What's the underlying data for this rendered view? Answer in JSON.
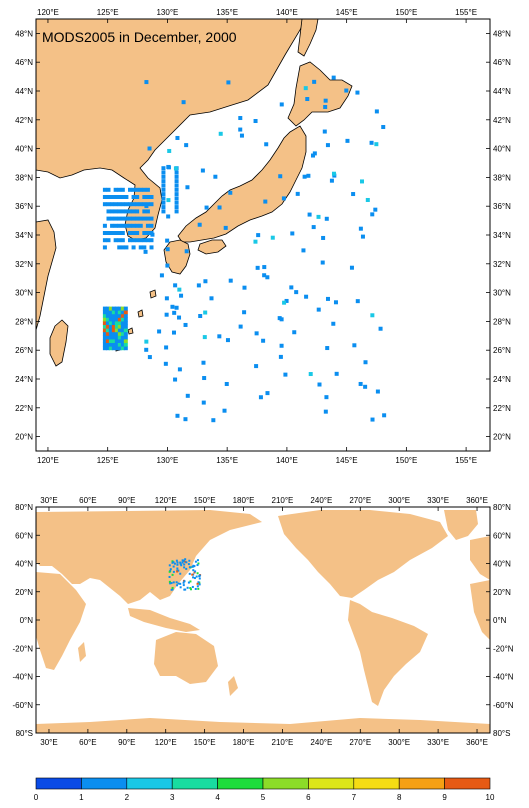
{
  "colors": {
    "land": "#f4c187",
    "ocean": "#ffffff",
    "frame": "#000000",
    "scale": [
      "#0a4be6",
      "#0a8ef0",
      "#19c8e6",
      "#19dca0",
      "#1edc3c",
      "#8cdc28",
      "#dce619",
      "#f5dc14",
      "#f5a014",
      "#e65a14"
    ]
  },
  "top_map": {
    "title": "MODS2005 in December, 2000",
    "lon_range": [
      119,
      157
    ],
    "lat_range": [
      19,
      49
    ],
    "x_ticks": [
      {
        "v": 120,
        "label": "120°E"
      },
      {
        "v": 125,
        "label": "125°E"
      },
      {
        "v": 130,
        "label": "130°E"
      },
      {
        "v": 135,
        "label": "135°E"
      },
      {
        "v": 140,
        "label": "140°E"
      },
      {
        "v": 145,
        "label": "145°E"
      },
      {
        "v": 150,
        "label": "150°E"
      },
      {
        "v": 155,
        "label": "155°E"
      }
    ],
    "y_ticks": [
      {
        "v": 20,
        "label": "20°N"
      },
      {
        "v": 22,
        "label": "22°N"
      },
      {
        "v": 24,
        "label": "24°N"
      },
      {
        "v": 26,
        "label": "26°N"
      },
      {
        "v": 28,
        "label": "28°N"
      },
      {
        "v": 30,
        "label": "30°N"
      },
      {
        "v": 32,
        "label": "32°N"
      },
      {
        "v": 34,
        "label": "34°N"
      },
      {
        "v": 36,
        "label": "36°N"
      },
      {
        "v": 38,
        "label": "38°N"
      },
      {
        "v": 40,
        "label": "40°N"
      },
      {
        "v": 42,
        "label": "42°N"
      },
      {
        "v": 44,
        "label": "44°N"
      },
      {
        "v": 46,
        "label": "46°N"
      },
      {
        "v": 48,
        "label": "48°N"
      }
    ]
  },
  "bottom_map": {
    "lon_range": [
      20,
      370
    ],
    "lat_range": [
      -80,
      80
    ],
    "x_ticks": [
      {
        "v": 30,
        "label": "30°E"
      },
      {
        "v": 60,
        "label": "60°E"
      },
      {
        "v": 90,
        "label": "90°E"
      },
      {
        "v": 120,
        "label": "120°E"
      },
      {
        "v": 150,
        "label": "150°E"
      },
      {
        "v": 180,
        "label": "180°E"
      },
      {
        "v": 210,
        "label": "210°E"
      },
      {
        "v": 240,
        "label": "240°E"
      },
      {
        "v": 270,
        "label": "270°E"
      },
      {
        "v": 300,
        "label": "300°E"
      },
      {
        "v": 330,
        "label": "330°E"
      },
      {
        "v": 360,
        "label": "360°E"
      }
    ],
    "y_ticks": [
      {
        "v": -80,
        "label": "80°S"
      },
      {
        "v": -60,
        "label": "-60°N"
      },
      {
        "v": -40,
        "label": "-40°N"
      },
      {
        "v": -20,
        "label": "-20°N"
      },
      {
        "v": 0,
        "label": "0°N"
      },
      {
        "v": 20,
        "label": "20°N"
      },
      {
        "v": 40,
        "label": "40°N"
      },
      {
        "v": 60,
        "label": "60°N"
      },
      {
        "v": 80,
        "label": "80°N"
      }
    ]
  },
  "colorbar": {
    "labels": [
      "0",
      "1",
      "2",
      "3",
      "4",
      "5",
      "6",
      "7",
      "8",
      "9",
      "10"
    ]
  }
}
